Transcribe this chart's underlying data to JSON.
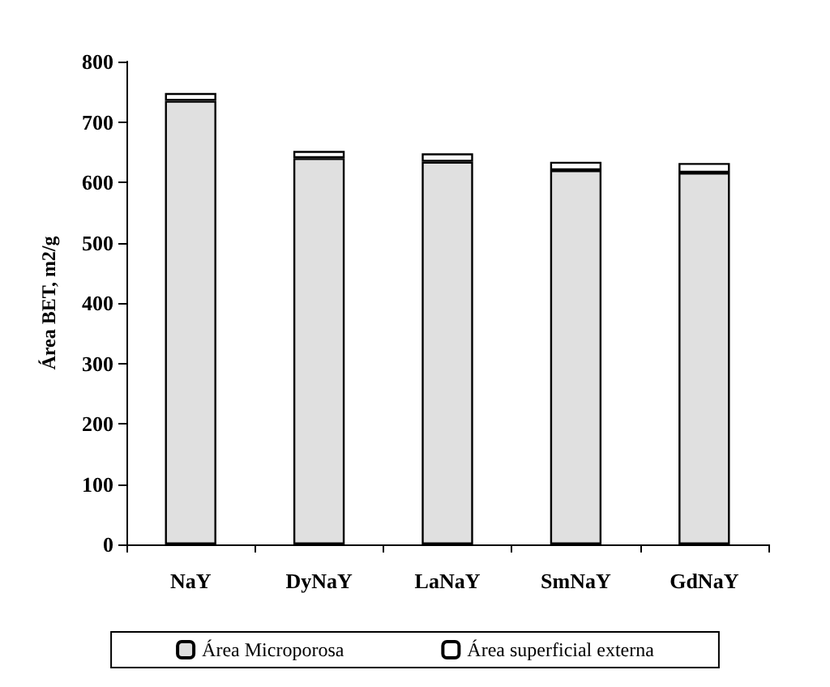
{
  "chart_data": {
    "type": "bar",
    "stacked": true,
    "ylabel": "Área BET, m2/g",
    "categories": [
      "NaY",
      "DyNaY",
      "LaNaY",
      "SmNaY",
      "GdNaY"
    ],
    "series": [
      {
        "name": "Área Microporosa",
        "color": "#e0e0e0",
        "values": [
          735,
          640,
          634,
          620,
          616
        ]
      },
      {
        "name": "Área superficial externa",
        "color": "#ffffff",
        "values": [
          13,
          12,
          14,
          14,
          16
        ]
      }
    ],
    "ylim": [
      0,
      800
    ],
    "yticks": [
      0,
      100,
      200,
      300,
      400,
      500,
      600,
      700,
      800
    ],
    "grid": false,
    "legend": "bottom"
  }
}
